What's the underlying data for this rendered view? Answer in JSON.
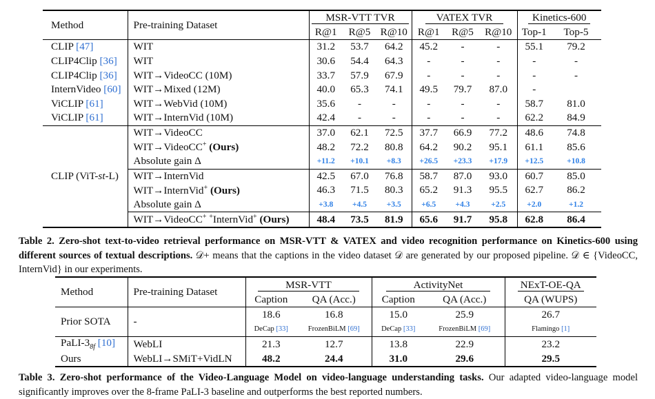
{
  "table2": {
    "head": {
      "method": "Method",
      "dataset": "Pre-training Dataset",
      "groups": [
        "MSR-VTT TVR",
        "VATEX TVR",
        "Kinetics-600"
      ],
      "subcols": [
        "R@1",
        "R@5",
        "R@10",
        "R@1",
        "R@5",
        "R@10",
        "Top-1",
        "Top-5"
      ]
    },
    "rows": [
      {
        "method": "CLIP",
        "ref": "[47]",
        "dataset": "WIT",
        "vals": [
          "31.2",
          "53.7",
          "64.2",
          "45.2",
          "-",
          "-",
          "55.1",
          "79.2"
        ]
      },
      {
        "method": "CLIP4Clip",
        "ref": "[36]",
        "dataset": "WIT",
        "vals": [
          "30.6",
          "54.4",
          "64.3",
          "-",
          "-",
          "-",
          "-",
          "-"
        ]
      },
      {
        "method": "CLIP4Clip",
        "ref": "[36]",
        "dataset": "WIT→VideoCC (10M)",
        "vals": [
          "33.7",
          "57.9",
          "67.9",
          "-",
          "-",
          "-",
          "-",
          "-"
        ]
      },
      {
        "method": "InternVideo",
        "ref": "[60]",
        "dataset": "WIT→Mixed (12M)",
        "vals": [
          "40.0",
          "65.3",
          "74.1",
          "49.5",
          "79.7",
          "87.0",
          "-",
          ""
        ]
      },
      {
        "method": "ViCLIP",
        "ref": "[61]",
        "dataset": "WIT→WebVid (10M)",
        "vals": [
          "35.6",
          "-",
          "-",
          "-",
          "-",
          "-",
          "58.7",
          "81.0"
        ]
      },
      {
        "method": "ViCLIP",
        "ref": "[61]",
        "dataset": "WIT→InternVid (10M)",
        "vals": [
          "42.4",
          "-",
          "-",
          "-",
          "-",
          "-",
          "62.2",
          "84.9"
        ]
      }
    ],
    "ours_method": "CLIP (ViT-st-L)",
    "ours_rows": [
      {
        "dataset": "WIT→VideoCC",
        "vals": [
          "37.0",
          "62.1",
          "72.5",
          "37.7",
          "66.9",
          "77.2",
          "48.6",
          "74.8"
        ]
      },
      {
        "dataset": "WIT→VideoCC+ (Ours)",
        "vals": [
          "48.2",
          "72.2",
          "80.8",
          "64.2",
          "90.2",
          "95.1",
          "61.1",
          "85.6"
        ]
      },
      {
        "dataset": "Absolute gain Δ",
        "vals": [
          "+11.2",
          "+10.1",
          "+8.3",
          "+26.5",
          "+23.3",
          "+17.9",
          "+12.5",
          "+10.8"
        ]
      },
      {
        "dataset": "WIT→InternVid",
        "vals": [
          "42.5",
          "67.0",
          "76.8",
          "58.7",
          "87.0",
          "93.0",
          "60.7",
          "85.0"
        ]
      },
      {
        "dataset": "WIT→InternVid+ (Ours)",
        "vals": [
          "46.3",
          "71.5",
          "80.3",
          "65.2",
          "91.3",
          "95.5",
          "62.7",
          "86.2"
        ]
      },
      {
        "dataset": "Absolute gain Δ",
        "vals": [
          "+3.8",
          "+4.5",
          "+3.5",
          "+6.5",
          "+4.3",
          "+2.5",
          "+2.0",
          "+1.2"
        ]
      },
      {
        "dataset": "WIT→VideoCC+ +InternVid+ (Ours)",
        "vals": [
          "48.4",
          "73.5",
          "81.9",
          "65.6",
          "91.7",
          "95.8",
          "62.8",
          "86.4"
        ]
      }
    ],
    "caption_label": "Table 2.",
    "caption_bold": "Zero-shot text-to-video retrieval performance on MSR-VTT & VATEX and video recognition performance on Kinetics-600 using different sources of textual descriptions.",
    "caption_rest": "𝒟+ means that the captions in the video dataset 𝒟 are generated by our proposed pipeline. 𝒟 ∈ {VideoCC, InternVid} in our experiments."
  },
  "table3": {
    "head": {
      "method": "Method",
      "dataset": "Pre-training Dataset",
      "groups": [
        "MSR-VTT",
        "ActivityNet",
        "NExT-OE-QA"
      ],
      "subcols": [
        "Caption",
        "QA (Acc.)",
        "Caption",
        "QA (Acc.)",
        "QA (WUPS)"
      ]
    },
    "prior": {
      "method": "Prior SOTA",
      "dataset": "-",
      "vals": [
        "18.6",
        "16.8",
        "15.0",
        "25.9",
        "26.7"
      ],
      "sources": [
        {
          "name": "DeCap",
          "ref": "[33]"
        },
        {
          "name": "FrozenBiLM",
          "ref": "[69]"
        },
        {
          "name": "DeCap",
          "ref": "[33]"
        },
        {
          "name": "FrozenBiLM",
          "ref": "[69]"
        },
        {
          "name": "Flamingo",
          "ref": "[1]"
        }
      ]
    },
    "pali": {
      "method": "PaLI-3",
      "sub": "8f",
      "ref": "[10]",
      "dataset": "WebLI",
      "vals": [
        "21.3",
        "12.7",
        "13.8",
        "22.9",
        "23.2"
      ]
    },
    "ours": {
      "method": "Ours",
      "dataset": "WebLI→SMiT+VidLN",
      "vals": [
        "48.2",
        "24.4",
        "31.0",
        "29.6",
        "29.5"
      ]
    },
    "caption_label": "Table 3.",
    "caption_bold": "Zero-shot performance of the Video-Language Model on video-language understanding tasks.",
    "caption_rest": "Our adapted video-language model significantly improves over the 8-frame PaLI-3 baseline and outperforms the best reported numbers."
  }
}
